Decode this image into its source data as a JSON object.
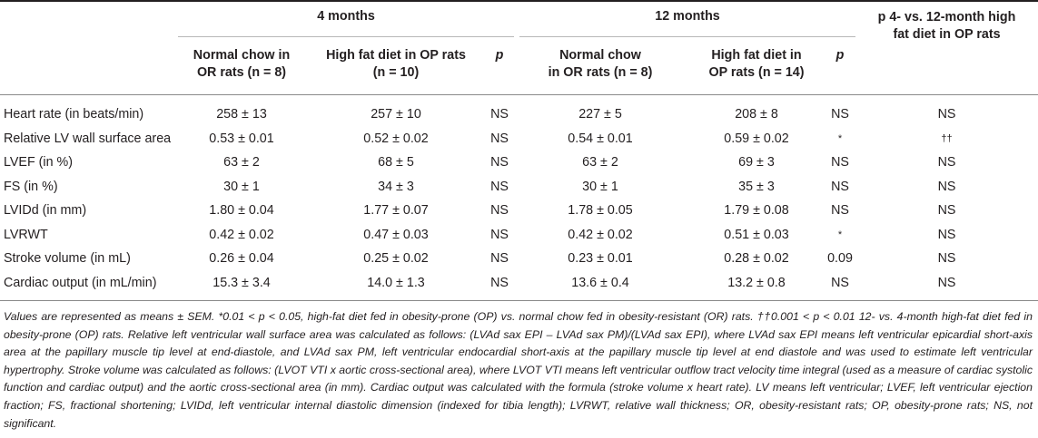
{
  "header": {
    "group_4m": "4 months",
    "group_12m": "12 months",
    "group_compare_line1": "p 4- vs. 12-month high",
    "group_compare_line2": "fat diet in OP rats",
    "col_nc4_line1": "Normal chow  in",
    "col_nc4_line2": "OR rats (n = 8)",
    "col_hf4_line1": "High fat diet in OP rats",
    "col_hf4_line2": "(n = 10)",
    "col_p4": "p",
    "col_nc12_line1": "Normal chow",
    "col_nc12_line2": "in OR rats  (n = 8)",
    "col_hf12_line1": "High fat diet  in",
    "col_hf12_line2": "OP rats (n = 14)",
    "col_p12": "p"
  },
  "rows": [
    {
      "label": "Heart rate (in beats/min)",
      "nc4": "258 ± 13",
      "hf4": "257 ± 10",
      "p4": "NS",
      "nc12": "227 ± 5",
      "hf12": "208 ± 8",
      "p12": "NS",
      "pc": "NS"
    },
    {
      "label": "Relative LV wall surface area",
      "nc4": "0.53 ± 0.01",
      "hf4": "0.52 ± 0.02",
      "p4": "NS",
      "nc12": "0.54 ± 0.01",
      "hf12": "0.59 ± 0.02",
      "p12": "*",
      "pc": "††"
    },
    {
      "label": "LVEF (in %)",
      "nc4": "63 ± 2",
      "hf4": "68 ± 5",
      "p4": "NS",
      "nc12": "63 ± 2",
      "hf12": "69 ± 3",
      "p12": "NS",
      "pc": "NS"
    },
    {
      "label": "FS (in %)",
      "nc4": "30 ± 1",
      "hf4": "34 ± 3",
      "p4": "NS",
      "nc12": "30 ± 1",
      "hf12": "35 ± 3",
      "p12": "NS",
      "pc": "NS"
    },
    {
      "label": "LVIDd (in mm)",
      "nc4": "1.80 ± 0.04",
      "hf4": "1.77 ± 0.07",
      "p4": "NS",
      "nc12": "1.78 ± 0.05",
      "hf12": "1.79 ± 0.08",
      "p12": "NS",
      "pc": "NS"
    },
    {
      "label": "LVRWT",
      "nc4": "0.42 ± 0.02",
      "hf4": "0.47 ± 0.03",
      "p4": "NS",
      "nc12": "0.42 ± 0.02",
      "hf12": "0.51 ± 0.03",
      "p12": "*",
      "pc": "NS"
    },
    {
      "label": "Stroke volume (in mL)",
      "nc4": "0.26 ± 0.04",
      "hf4": "0.25 ± 0.02",
      "p4": "NS",
      "nc12": "0.23 ± 0.01",
      "hf12": "0.28 ± 0.02",
      "p12": "0.09",
      "pc": "NS"
    },
    {
      "label": "Cardiac output (in mL/min)",
      "nc4": "15.3 ± 3.4",
      "hf4": "14.0 ± 1.3",
      "p4": "NS",
      "nc12": "13.6 ± 0.4",
      "hf12": "13.2 ± 0.8",
      "p12": "NS",
      "pc": "NS"
    }
  ],
  "footnote": "Values are represented as means ± SEM. *0.01 < p < 0.05, high-fat diet fed in obesity-prone (OP) vs. normal chow fed in obesity-resistant (OR) rats. ††0.001 < p < 0.01 12- vs. 4-month high-fat diet fed in obesity-prone (OP) rats. Relative left ventricular wall surface area was calculated as follows: (LVAd sax EPI – LVAd sax PM)/(LVAd sax EPI), where LVAd sax EPI means left ventricular epicardial short-axis area at the papillary muscle tip level at end-diastole, and LVAd sax PM, left ventricular endocardial short-axis at the papillary muscle tip level at end diastole and was used to estimate left ventricular hypertrophy. Stroke volume was calculated as follows: (LVOT VTI x aortic cross-sectional area), where LVOT VTI means left ventricular outflow tract velocity time integral (used as a measure of cardiac systolic function and cardiac output) and the aortic cross-sectional area (in mm). Cardiac output was calculated with the formula (stroke volume x heart rate). LV means left ventricular; LVEF, left ventricular ejection fraction; FS, fractional shortening; LVIDd, left ventricular internal diastolic dimension (indexed for tibia length); LVRWT, relative wall thickness; OR, obesity-resistant rats; OP, obesity-prone rats; NS, not significant."
}
